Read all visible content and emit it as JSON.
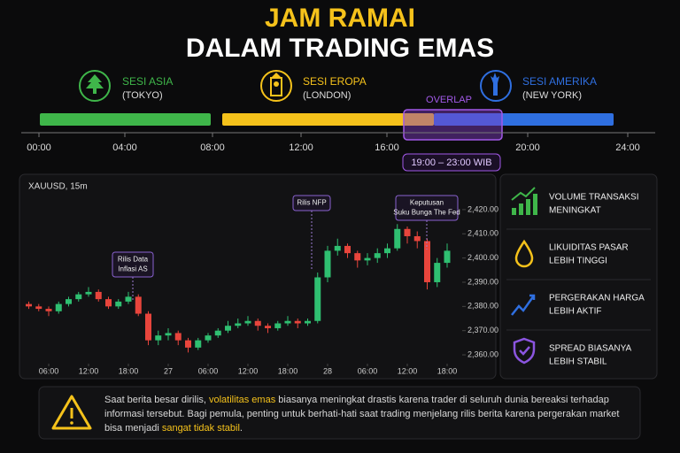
{
  "header": {
    "title": "JAM RAMAI",
    "subtitle": "DALAM TRADING EMAS"
  },
  "sessions": [
    {
      "name": "SESI ASIA",
      "city": "(TOKYO)",
      "color": "#3fb64a"
    },
    {
      "name": "SESI EROPA",
      "city": "(LONDON)",
      "color": "#f5c21b"
    },
    {
      "name": "SESI AMERIKA",
      "city": "(NEW YORK)",
      "color": "#2f6fe0"
    }
  ],
  "timeline": {
    "ticks": [
      "00:00",
      "04:00",
      "08:00",
      "12:00",
      "16:00",
      "20:00",
      "24:00"
    ],
    "overlap_label": "OVERLAP",
    "overlap_time": "19:00 – 23:00 WIB"
  },
  "chart_data": {
    "type": "candlestick",
    "title": "XAUUSD, 15m",
    "x": [
      3,
      4.5,
      6,
      7.5,
      9,
      10.5,
      12,
      13.5,
      15,
      16.5,
      18,
      19.5,
      21,
      22.5,
      24,
      25.5,
      27,
      28.5,
      30,
      31.5,
      33,
      34.5,
      36,
      37.5,
      39,
      40.5,
      42,
      43.5,
      45,
      46.5,
      48,
      49.5,
      51,
      52.5,
      54,
      55.5,
      57,
      58.5,
      60,
      61.5,
      63,
      64.5,
      66
    ],
    "open": [
      2381,
      2380,
      2379,
      2378,
      2381,
      2383,
      2385,
      2386,
      2383,
      2380,
      2382,
      2384,
      2377,
      2366,
      2368,
      2369,
      2366,
      2363,
      2366,
      2368,
      2370,
      2372,
      2373,
      2374,
      2372,
      2371,
      2373,
      2374,
      2373,
      2374,
      2392,
      2403,
      2405,
      2402,
      2399,
      2400,
      2402,
      2404,
      2412,
      2409,
      2407,
      2390,
      2398
    ],
    "high": [
      2382,
      2381,
      2380,
      2382,
      2384,
      2386,
      2388,
      2387,
      2384,
      2383,
      2386,
      2385,
      2378,
      2370,
      2371,
      2370,
      2367,
      2367,
      2369,
      2371,
      2374,
      2375,
      2376,
      2375,
      2373,
      2374,
      2376,
      2375,
      2375,
      2394,
      2405,
      2408,
      2406,
      2403,
      2402,
      2404,
      2406,
      2414,
      2413,
      2411,
      2408,
      2400,
      2406
    ],
    "low": [
      2379,
      2378,
      2376,
      2377,
      2380,
      2382,
      2384,
      2382,
      2379,
      2379,
      2381,
      2376,
      2364,
      2364,
      2366,
      2364,
      2361,
      2362,
      2365,
      2367,
      2369,
      2371,
      2372,
      2370,
      2369,
      2370,
      2372,
      2371,
      2372,
      2373,
      2390,
      2401,
      2400,
      2396,
      2397,
      2398,
      2400,
      2403,
      2406,
      2404,
      2387,
      2388,
      2396
    ],
    "close": [
      2380,
      2379,
      2378,
      2381,
      2383,
      2385,
      2386,
      2383,
      2380,
      2382,
      2384,
      2377,
      2366,
      2368,
      2369,
      2366,
      2363,
      2366,
      2368,
      2370,
      2372,
      2373,
      2374,
      2372,
      2371,
      2373,
      2374,
      2373,
      2374,
      2392,
      2403,
      2405,
      2402,
      2399,
      2400,
      2402,
      2404,
      2412,
      2409,
      2407,
      2390,
      2398,
      2403
    ],
    "up_color": "#2fbf71",
    "down_color": "#e8453c",
    "xlim": [
      2.4,
      68
    ],
    "xticks": [
      {
        "value": 6,
        "label": "06:00"
      },
      {
        "value": 12,
        "label": "12:00"
      },
      {
        "value": 18,
        "label": "18:00"
      },
      {
        "value": 24,
        "label": "27"
      },
      {
        "value": 30,
        "label": "06:00"
      },
      {
        "value": 36,
        "label": "12:00"
      },
      {
        "value": 42,
        "label": "18:00"
      },
      {
        "value": 48,
        "label": "28"
      },
      {
        "value": 54,
        "label": "06:00"
      },
      {
        "value": 60,
        "label": "12:00"
      },
      {
        "value": 66,
        "label": "18:00"
      }
    ],
    "ylim": [
      2356,
      2428
    ],
    "yticks": [
      {
        "value": 2360,
        "label": "2,360.00"
      },
      {
        "value": 2370,
        "label": "2,370.00"
      },
      {
        "value": 2380,
        "label": "2,380.00"
      },
      {
        "value": 2390,
        "label": "2,390.00"
      },
      {
        "value": 2400,
        "label": "2,400.00"
      },
      {
        "value": 2410,
        "label": "2,410.00"
      },
      {
        "value": 2420,
        "label": "2,420.00"
      }
    ],
    "annotations": [
      {
        "lines": [
          "Rilis Data",
          "Inflasi AS"
        ]
      },
      {
        "lines": [
          "Rilis NFP"
        ]
      },
      {
        "lines": [
          "Keputusan",
          "Suku Bunga The Fed"
        ]
      }
    ]
  },
  "features": [
    {
      "lines": [
        "VOLUME TRANSAKSI",
        "MENINGKAT"
      ]
    },
    {
      "lines": [
        "LIKUIDITAS PASAR",
        "LEBIH TINGGI"
      ]
    },
    {
      "lines": [
        "PERGERAKAN HARGA",
        "LEBIH AKTIF"
      ]
    },
    {
      "lines": [
        "SPREAD BIASANYA",
        "LEBIH STABIL"
      ]
    }
  ],
  "note": [
    "Saat berita besar dirilis, ",
    "volatilitas emas",
    " biasanya meningkat drastis karena trader di seluruh dunia bereaksi terhadap informasi tersebut. Bagi pemula, penting untuk berhati-hati saat trading menjelang rilis berita karena pergerakan market bisa menjadi ",
    "sangat tidak stabil",
    "."
  ]
}
